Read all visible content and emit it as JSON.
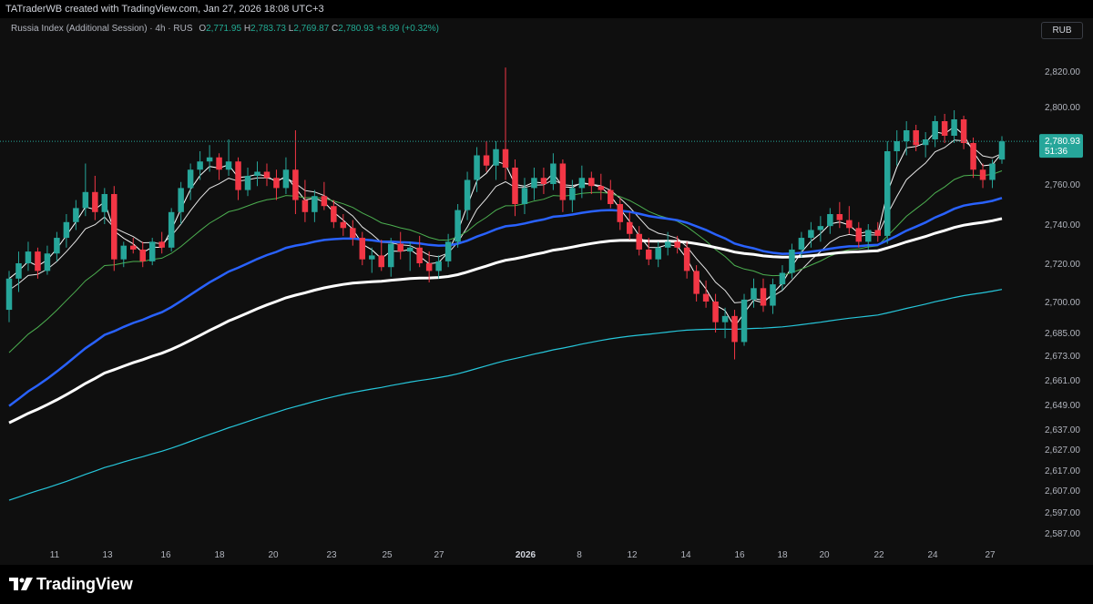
{
  "header": {
    "attribution": "TATraderWB created with TradingView.com, Jan 27, 2026 18:08 UTC+3"
  },
  "legend": {
    "symbol": "Russia Index (Additional Session) · 4h · RUS",
    "open_label": "O",
    "open": "2,771.95",
    "high_label": "H",
    "high": "2,783.73",
    "low_label": "L",
    "low": "2,769.87",
    "close_label": "C",
    "close": "2,780.93",
    "change": "+8.99 (+0.32%)"
  },
  "currency": "RUB",
  "price_badge": {
    "price": "2,780.93",
    "countdown": "51:36"
  },
  "footer": {
    "brand": "TradingView"
  },
  "colors": {
    "up": "#26a69a",
    "down": "#f23645",
    "ma_fast": "#ffffff",
    "ma_slow_white": "#e6e6e6",
    "ma_green": "#4caf50",
    "ma_blue": "#2962ff",
    "ma_cyan": "#26c6da",
    "ma_thick": "#ffffff",
    "background": "#0f0f0f"
  },
  "chart_data": {
    "type": "candlestick",
    "y_ticks": [
      "2,820.00",
      "2,800.00",
      "2,780.00",
      "2,760.00",
      "2,740.00",
      "2,720.00",
      "2,700.00",
      "2,685.00",
      "2,673.00",
      "2,661.00",
      "2,649.00",
      "2,637.00",
      "2,627.00",
      "2,617.00",
      "2,607.00",
      "2,597.00",
      "2,587.00"
    ],
    "x_ticks": [
      "11",
      "13",
      "16",
      "18",
      "20",
      "23",
      "25",
      "27",
      "2026",
      "8",
      "12",
      "14",
      "16",
      "18",
      "20",
      "22",
      "24",
      "27"
    ],
    "x_tick_bold": [
      false,
      false,
      false,
      false,
      false,
      false,
      false,
      false,
      true,
      false,
      false,
      false,
      false,
      false,
      false,
      false,
      false,
      false
    ],
    "current_price": 2780.93,
    "candles": [
      [
        2696,
        2716,
        2690,
        2712
      ],
      [
        2712,
        2726,
        2705,
        2720
      ],
      [
        2720,
        2731,
        2716,
        2726
      ],
      [
        2726,
        2728,
        2712,
        2716
      ],
      [
        2716,
        2729,
        2714,
        2725
      ],
      [
        2725,
        2736,
        2721,
        2733
      ],
      [
        2733,
        2745,
        2728,
        2741
      ],
      [
        2741,
        2752,
        2737,
        2748
      ],
      [
        2748,
        2770,
        2744,
        2756
      ],
      [
        2756,
        2764,
        2742,
        2746
      ],
      [
        2746,
        2758,
        2740,
        2755
      ],
      [
        2755,
        2759,
        2716,
        2722
      ],
      [
        2722,
        2731,
        2718,
        2729
      ],
      [
        2729,
        2733,
        2725,
        2727
      ],
      [
        2727,
        2731,
        2718,
        2721
      ],
      [
        2721,
        2733,
        2719,
        2731
      ],
      [
        2731,
        2736,
        2725,
        2728
      ],
      [
        2728,
        2748,
        2726,
        2746
      ],
      [
        2746,
        2761,
        2740,
        2758
      ],
      [
        2758,
        2770,
        2752,
        2767
      ],
      [
        2767,
        2776,
        2762,
        2771
      ],
      [
        2771,
        2779,
        2766,
        2773
      ],
      [
        2773,
        2775,
        2762,
        2767
      ],
      [
        2767,
        2782,
        2764,
        2771
      ],
      [
        2771,
        2773,
        2752,
        2757
      ],
      [
        2757,
        2768,
        2754,
        2764
      ],
      [
        2764,
        2771,
        2759,
        2766
      ],
      [
        2766,
        2770,
        2759,
        2763
      ],
      [
        2763,
        2767,
        2752,
        2758
      ],
      [
        2758,
        2773,
        2755,
        2767
      ],
      [
        2767,
        2787,
        2745,
        2752
      ],
      [
        2752,
        2762,
        2741,
        2746
      ],
      [
        2746,
        2757,
        2741,
        2754
      ],
      [
        2754,
        2761,
        2747,
        2749
      ],
      [
        2749,
        2752,
        2738,
        2741
      ],
      [
        2741,
        2745,
        2734,
        2738
      ],
      [
        2738,
        2742,
        2729,
        2733
      ],
      [
        2733,
        2736,
        2719,
        2722
      ],
      [
        2722,
        2728,
        2715,
        2724
      ],
      [
        2724,
        2732,
        2716,
        2718
      ],
      [
        2718,
        2733,
        2713,
        2730
      ],
      [
        2730,
        2736,
        2722,
        2726
      ],
      [
        2726,
        2731,
        2716,
        2728
      ],
      [
        2728,
        2734,
        2718,
        2720
      ],
      [
        2720,
        2726,
        2710,
        2716
      ],
      [
        2716,
        2724,
        2712,
        2721
      ],
      [
        2721,
        2735,
        2718,
        2731
      ],
      [
        2731,
        2750,
        2728,
        2747
      ],
      [
        2747,
        2766,
        2742,
        2762
      ],
      [
        2762,
        2778,
        2756,
        2774
      ],
      [
        2774,
        2781,
        2766,
        2769
      ],
      [
        2769,
        2781,
        2762,
        2777
      ],
      [
        2777,
        2822,
        2762,
        2768
      ],
      [
        2768,
        2772,
        2744,
        2750
      ],
      [
        2750,
        2763,
        2745,
        2758
      ],
      [
        2758,
        2768,
        2752,
        2763
      ],
      [
        2763,
        2768,
        2755,
        2760
      ],
      [
        2760,
        2775,
        2757,
        2770
      ],
      [
        2770,
        2772,
        2746,
        2752
      ],
      [
        2752,
        2762,
        2746,
        2758
      ],
      [
        2758,
        2769,
        2753,
        2763
      ],
      [
        2763,
        2766,
        2755,
        2759
      ],
      [
        2759,
        2765,
        2752,
        2757
      ],
      [
        2757,
        2762,
        2748,
        2750
      ],
      [
        2750,
        2753,
        2737,
        2741
      ],
      [
        2741,
        2746,
        2732,
        2735
      ],
      [
        2735,
        2739,
        2724,
        2727
      ],
      [
        2727,
        2733,
        2719,
        2722
      ],
      [
        2722,
        2731,
        2718,
        2728
      ],
      [
        2728,
        2736,
        2724,
        2731
      ],
      [
        2731,
        2734,
        2725,
        2728
      ],
      [
        2728,
        2731,
        2712,
        2716
      ],
      [
        2716,
        2719,
        2700,
        2704
      ],
      [
        2704,
        2711,
        2697,
        2700
      ],
      [
        2700,
        2704,
        2685,
        2690
      ],
      [
        2690,
        2697,
        2682,
        2693
      ],
      [
        2693,
        2696,
        2671,
        2680
      ],
      [
        2680,
        2704,
        2678,
        2701
      ],
      [
        2701,
        2712,
        2697,
        2707
      ],
      [
        2707,
        2712,
        2695,
        2698
      ],
      [
        2698,
        2712,
        2694,
        2709
      ],
      [
        2709,
        2719,
        2706,
        2715
      ],
      [
        2715,
        2730,
        2712,
        2727
      ],
      [
        2727,
        2736,
        2723,
        2733
      ],
      [
        2733,
        2741,
        2728,
        2737
      ],
      [
        2737,
        2744,
        2731,
        2739
      ],
      [
        2739,
        2748,
        2735,
        2745
      ],
      [
        2745,
        2751,
        2738,
        2742
      ],
      [
        2742,
        2749,
        2735,
        2738
      ],
      [
        2738,
        2741,
        2728,
        2731
      ],
      [
        2731,
        2740,
        2727,
        2737
      ],
      [
        2737,
        2741,
        2731,
        2734
      ],
      [
        2734,
        2781,
        2730,
        2776
      ],
      [
        2776,
        2787,
        2769,
        2781
      ],
      [
        2781,
        2792,
        2774,
        2787
      ],
      [
        2787,
        2790,
        2776,
        2779
      ],
      [
        2779,
        2786,
        2773,
        2782
      ],
      [
        2782,
        2795,
        2778,
        2792
      ],
      [
        2792,
        2796,
        2780,
        2784
      ],
      [
        2784,
        2798,
        2780,
        2793
      ],
      [
        2793,
        2795,
        2777,
        2780
      ],
      [
        2780,
        2783,
        2763,
        2767
      ],
      [
        2767,
        2770,
        2758,
        2762
      ],
      [
        2762,
        2772,
        2758,
        2770
      ],
      [
        2771.95,
        2783.73,
        2769.87,
        2780.93
      ]
    ]
  }
}
